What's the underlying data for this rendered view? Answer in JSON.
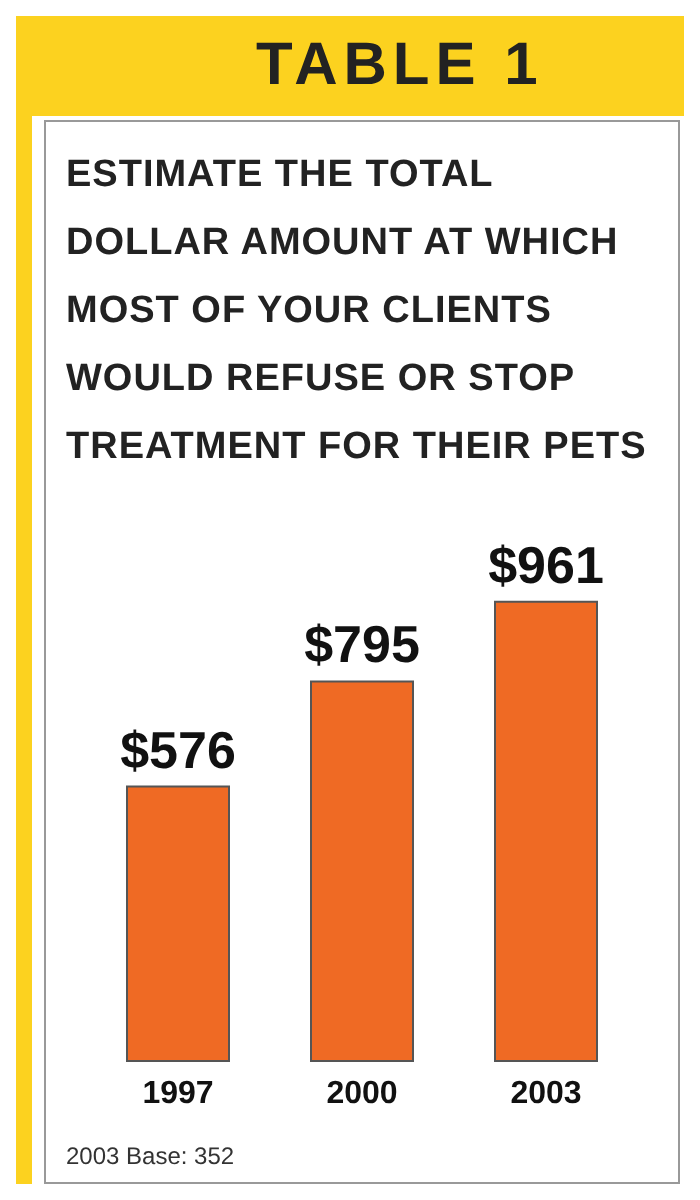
{
  "chart_data": {
    "type": "bar",
    "title": "TABLE 1",
    "subtitle": "ESTIMATE THE TOTAL DOLLAR AMOUNT AT WHICH MOST OF YOUR CLIENTS WOULD REFUSE OR STOP TREATMENT FOR THEIR PETS",
    "categories": [
      "1997",
      "2000",
      "2003"
    ],
    "values": [
      576,
      795,
      961
    ],
    "value_labels": [
      "$576",
      "$795",
      "$961"
    ],
    "colors": [
      "#ef6a24",
      "#ef6a24",
      "#ef6a24"
    ],
    "annotations": [
      "2003 Base: 352"
    ]
  }
}
